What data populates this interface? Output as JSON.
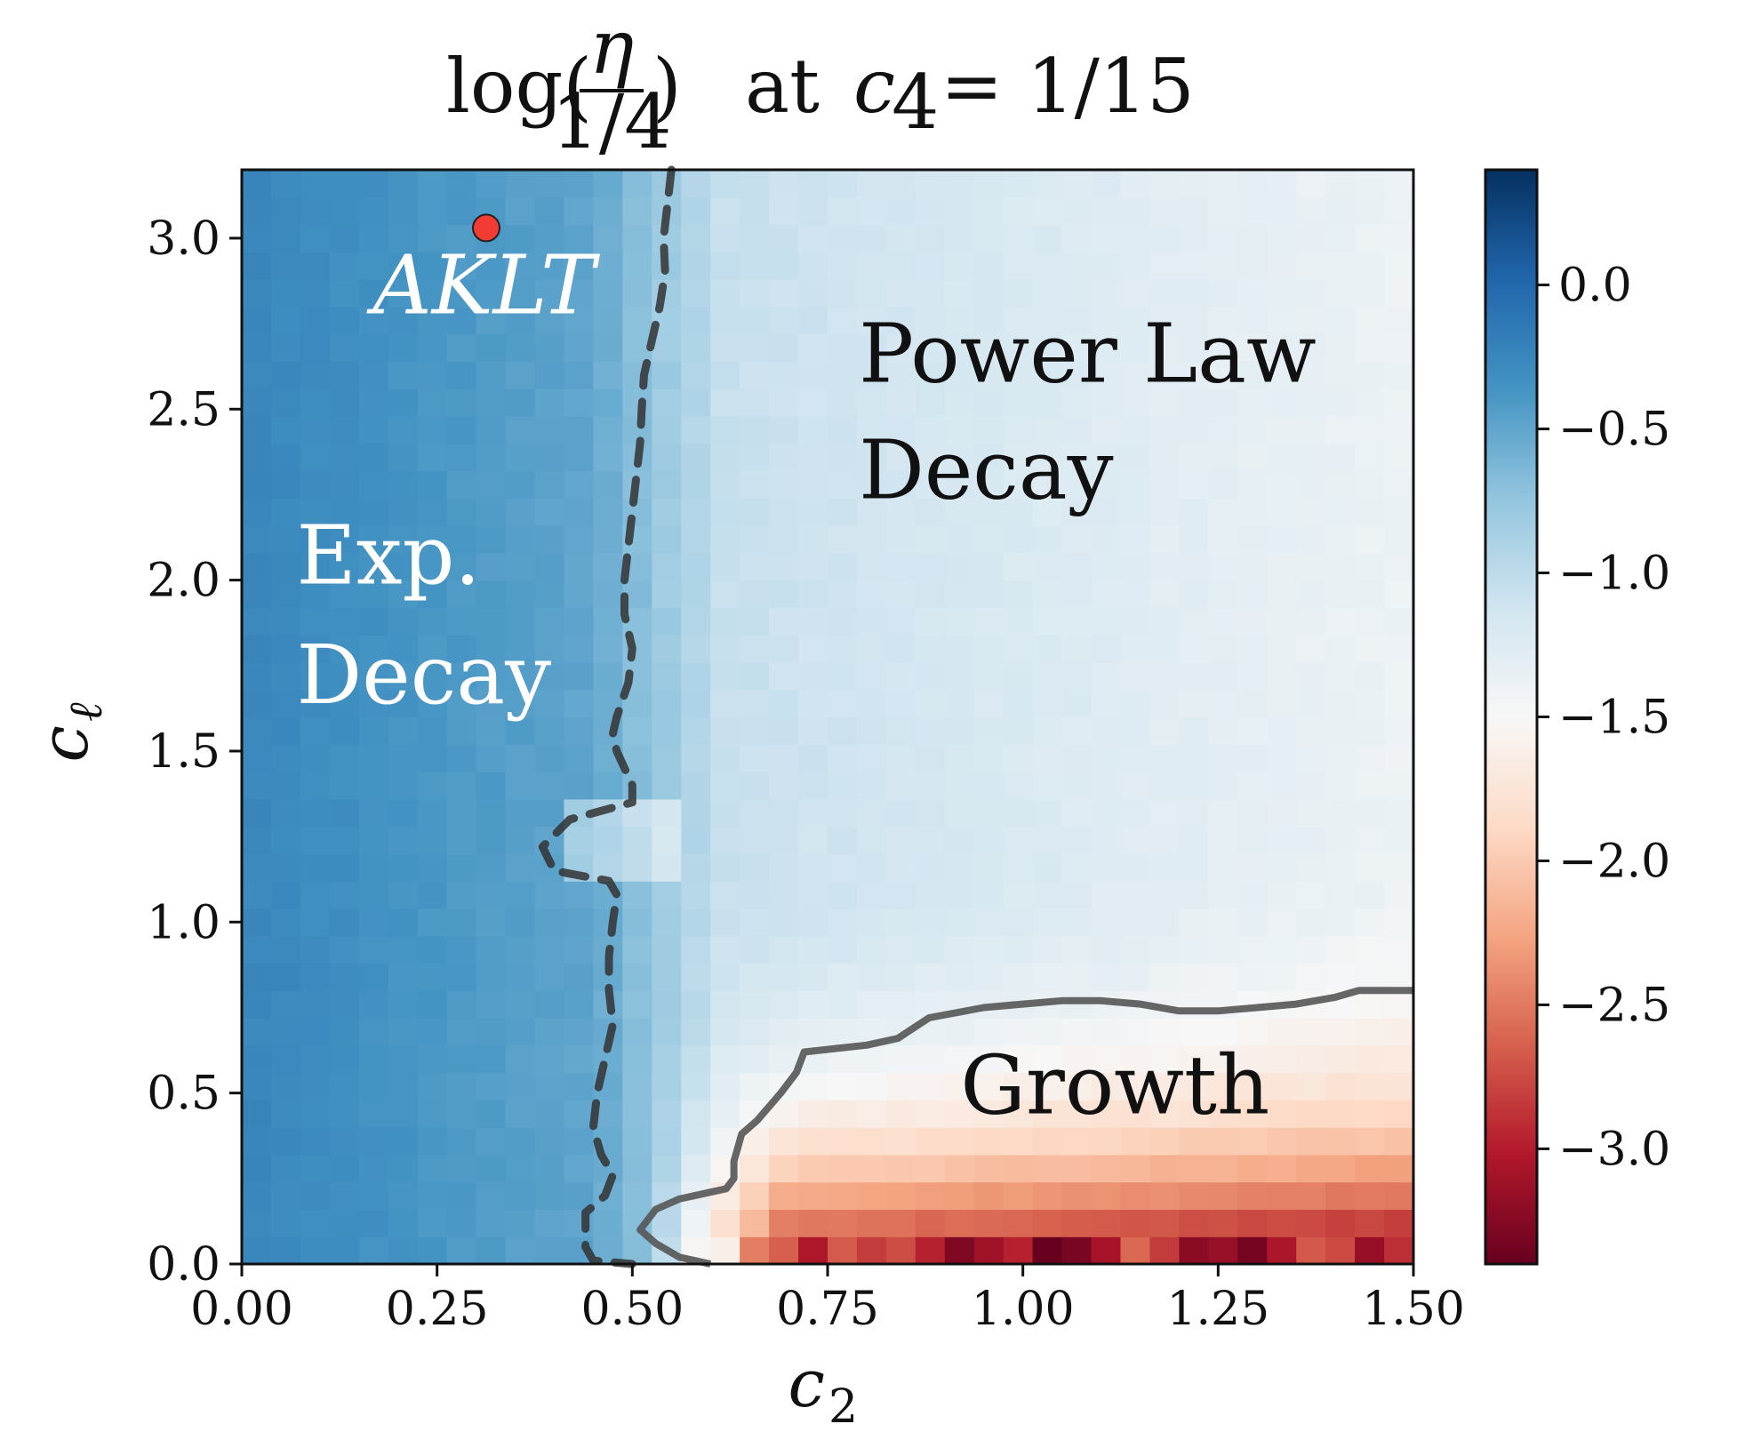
{
  "chart_data": {
    "type": "heatmap",
    "title": {
      "log": "log(",
      "numerator": "η",
      "denominator": "1/4",
      "close": ")",
      "at": "at",
      "param": "c",
      "param_sub": "4",
      "value": "= 1/15"
    },
    "xlabel": {
      "main": "c",
      "sub": "2"
    },
    "ylabel": {
      "main": "c",
      "sub": "ℓ"
    },
    "xlim": [
      0.0,
      1.5
    ],
    "ylim": [
      0.0,
      3.2
    ],
    "x_ticks": [
      {
        "value": 0.0,
        "label": "0.00"
      },
      {
        "value": 0.25,
        "label": "0.25"
      },
      {
        "value": 0.5,
        "label": "0.50"
      },
      {
        "value": 0.75,
        "label": "0.75"
      },
      {
        "value": 1.0,
        "label": "1.00"
      },
      {
        "value": 1.25,
        "label": "1.25"
      },
      {
        "value": 1.5,
        "label": "1.50"
      }
    ],
    "y_ticks": [
      {
        "value": 0.0,
        "label": "0.0"
      },
      {
        "value": 0.5,
        "label": "0.5"
      },
      {
        "value": 1.0,
        "label": "1.0"
      },
      {
        "value": 1.5,
        "label": "1.5"
      },
      {
        "value": 2.0,
        "label": "2.0"
      },
      {
        "value": 2.5,
        "label": "2.5"
      },
      {
        "value": 3.0,
        "label": "3.0"
      }
    ],
    "colorbar": {
      "cmap": "RdBu",
      "range": [
        -3.4,
        0.4
      ],
      "ticks": [
        {
          "value": 0.0,
          "label": "0.0"
        },
        {
          "value": -0.5,
          "label": "−0.5"
        },
        {
          "value": -1.0,
          "label": "−1.0"
        },
        {
          "value": -1.5,
          "label": "−1.5"
        },
        {
          "value": -2.0,
          "label": "−2.0"
        },
        {
          "value": -2.5,
          "label": "−2.5"
        },
        {
          "value": -3.0,
          "label": "−3.0"
        }
      ]
    },
    "grid": {
      "nx": 40,
      "ny": 40,
      "resolution_note": "approximate field reconstruction"
    },
    "annotations": [
      {
        "id": "aklt",
        "text": "AKLT",
        "x": 0.31,
        "y": 2.78,
        "color": "#ffffff"
      },
      {
        "id": "power-law-line1",
        "text": "Power Law",
        "x": 0.79,
        "y": 2.58,
        "color": "#111111"
      },
      {
        "id": "power-law-line2",
        "text": "Decay",
        "x": 0.79,
        "y": 2.24,
        "color": "#111111"
      },
      {
        "id": "exp-line1",
        "text": "Exp.",
        "x": 0.07,
        "y": 1.99,
        "color": "#ffffff"
      },
      {
        "id": "exp-line2",
        "text": "Decay",
        "x": 0.07,
        "y": 1.64,
        "color": "#ffffff"
      },
      {
        "id": "growth",
        "text": "Growth",
        "x": 0.92,
        "y": 0.44,
        "color": "#111111"
      }
    ],
    "marker": {
      "label": "AKLT point",
      "x": 0.313,
      "y": 3.03,
      "color": "#f23b32"
    },
    "boundaries": {
      "dashed": [
        [
          0.55,
          3.2
        ],
        [
          0.545,
          3.1
        ],
        [
          0.54,
          3.0
        ],
        [
          0.542,
          2.9
        ],
        [
          0.535,
          2.8
        ],
        [
          0.525,
          2.7
        ],
        [
          0.515,
          2.6
        ],
        [
          0.512,
          2.5
        ],
        [
          0.51,
          2.4
        ],
        [
          0.505,
          2.3
        ],
        [
          0.5,
          2.2
        ],
        [
          0.495,
          2.1
        ],
        [
          0.49,
          2.0
        ],
        [
          0.49,
          1.9
        ],
        [
          0.5,
          1.8
        ],
        [
          0.495,
          1.7
        ],
        [
          0.48,
          1.6
        ],
        [
          0.475,
          1.55
        ],
        [
          0.48,
          1.5
        ],
        [
          0.5,
          1.4
        ],
        [
          0.5,
          1.35
        ],
        [
          0.42,
          1.3
        ],
        [
          0.385,
          1.22
        ],
        [
          0.4,
          1.15
        ],
        [
          0.47,
          1.12
        ],
        [
          0.48,
          1.08
        ],
        [
          0.475,
          1.0
        ],
        [
          0.47,
          0.9
        ],
        [
          0.47,
          0.8
        ],
        [
          0.475,
          0.7
        ],
        [
          0.465,
          0.6
        ],
        [
          0.455,
          0.5
        ],
        [
          0.45,
          0.4
        ],
        [
          0.46,
          0.32
        ],
        [
          0.475,
          0.26
        ],
        [
          0.465,
          0.2
        ],
        [
          0.44,
          0.15
        ],
        [
          0.44,
          0.05
        ],
        [
          0.45,
          0.01
        ],
        [
          0.5,
          0.0
        ]
      ],
      "solid": [
        [
          0.6,
          0.0
        ],
        [
          0.56,
          0.02
        ],
        [
          0.53,
          0.06
        ],
        [
          0.51,
          0.1
        ],
        [
          0.53,
          0.16
        ],
        [
          0.56,
          0.19
        ],
        [
          0.6,
          0.21
        ],
        [
          0.62,
          0.22
        ],
        [
          0.63,
          0.25
        ],
        [
          0.63,
          0.3
        ],
        [
          0.64,
          0.38
        ],
        [
          0.66,
          0.42
        ],
        [
          0.69,
          0.5
        ],
        [
          0.71,
          0.56
        ],
        [
          0.72,
          0.62
        ],
        [
          0.76,
          0.63
        ],
        [
          0.8,
          0.64
        ],
        [
          0.84,
          0.66
        ],
        [
          0.88,
          0.72
        ],
        [
          0.95,
          0.75
        ],
        [
          1.0,
          0.76
        ],
        [
          1.05,
          0.77
        ],
        [
          1.1,
          0.77
        ],
        [
          1.15,
          0.76
        ],
        [
          1.2,
          0.74
        ],
        [
          1.25,
          0.74
        ],
        [
          1.3,
          0.75
        ],
        [
          1.35,
          0.76
        ],
        [
          1.4,
          0.78
        ],
        [
          1.43,
          0.8
        ],
        [
          1.5,
          0.8
        ]
      ]
    }
  }
}
